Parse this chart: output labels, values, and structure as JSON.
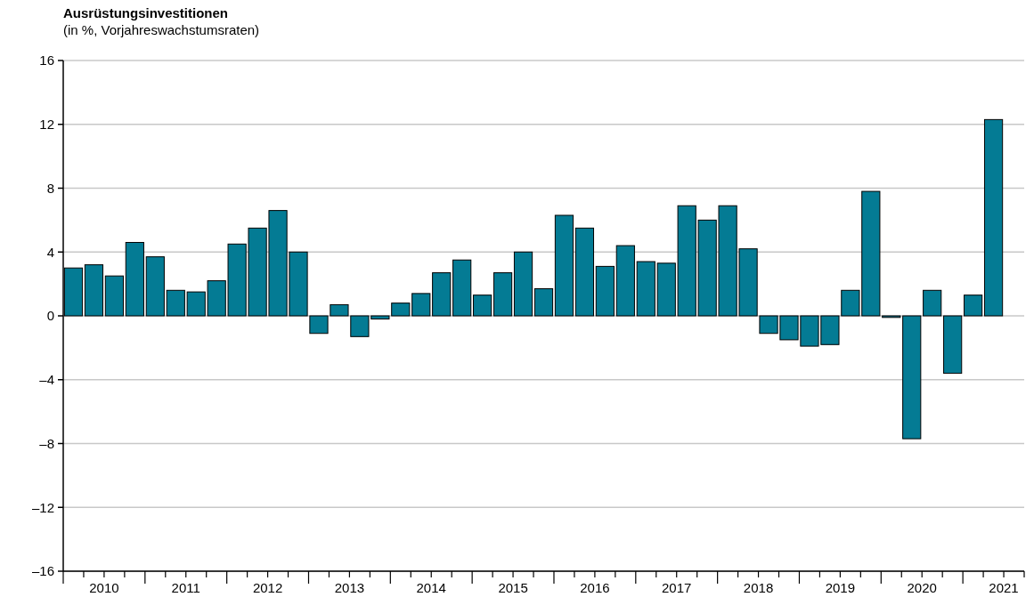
{
  "chart_data": {
    "type": "bar",
    "title": "Ausrüstungsinvestitionen",
    "subtitle": "(in %, Vorjahreswachstumsraten)",
    "x": [
      2010.125,
      2010.375,
      2010.625,
      2010.875,
      2011.125,
      2011.375,
      2011.625,
      2011.875,
      2012.125,
      2012.375,
      2012.625,
      2012.875,
      2013.125,
      2013.375,
      2013.625,
      2013.875,
      2014.125,
      2014.375,
      2014.625,
      2014.875,
      2015.125,
      2015.375,
      2015.625,
      2015.875,
      2016.125,
      2016.375,
      2016.625,
      2016.875,
      2017.125,
      2017.375,
      2017.625,
      2017.875,
      2018.125,
      2018.375,
      2018.625,
      2018.875,
      2019.125,
      2019.375,
      2019.625,
      2019.875,
      2020.125,
      2020.375,
      2020.625,
      2020.875,
      2021.125,
      2021.375
    ],
    "values": [
      3.0,
      3.2,
      2.5,
      4.6,
      3.7,
      1.6,
      1.5,
      2.2,
      4.5,
      5.5,
      6.6,
      4.0,
      -1.1,
      0.7,
      -1.3,
      -0.2,
      0.8,
      1.4,
      2.7,
      3.5,
      1.3,
      2.7,
      4.0,
      1.7,
      6.3,
      5.5,
      3.1,
      4.4,
      3.4,
      3.3,
      6.9,
      6.0,
      6.9,
      4.2,
      -1.1,
      -1.5,
      -1.9,
      -1.8,
      1.6,
      7.8,
      -0.1,
      -7.7,
      1.6,
      -3.6,
      1.3,
      12.3
    ],
    "xlim": [
      2010,
      2021.75
    ],
    "xticks": [
      {
        "value": 2010.5,
        "label": "2010"
      },
      {
        "value": 2011.5,
        "label": "2011"
      },
      {
        "value": 2012.5,
        "label": "2012"
      },
      {
        "value": 2013.5,
        "label": "2013"
      },
      {
        "value": 2014.5,
        "label": "2014"
      },
      {
        "value": 2015.5,
        "label": "2015"
      },
      {
        "value": 2016.5,
        "label": "2016"
      },
      {
        "value": 2017.5,
        "label": "2017"
      },
      {
        "value": 2018.5,
        "label": "2018"
      },
      {
        "value": 2019.5,
        "label": "2019"
      },
      {
        "value": 2020.5,
        "label": "2020"
      },
      {
        "value": 2021.5,
        "label": "2021"
      }
    ],
    "color": "#047b94",
    "ylim": [
      -16,
      16
    ],
    "yticks": [
      {
        "value": -16,
        "label": "–16"
      },
      {
        "value": -12,
        "label": "–12"
      },
      {
        "value": -8,
        "label": "–8"
      },
      {
        "value": -4,
        "label": "–4"
      },
      0,
      4,
      8,
      12,
      16
    ],
    "grid": "y"
  }
}
